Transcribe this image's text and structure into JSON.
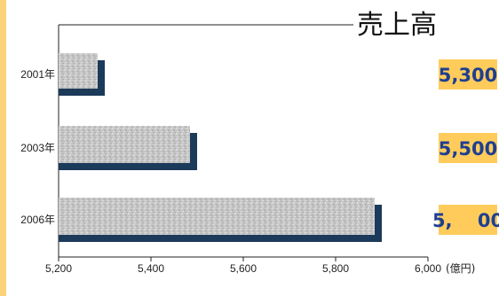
{
  "chart_data": {
    "type": "bar",
    "orientation": "horizontal",
    "title": "売上高",
    "categories": [
      "2001年",
      "2003年",
      "2006年"
    ],
    "values": [
      5300,
      5500,
      5900
    ],
    "value_labels": [
      "5,300",
      "5,500",
      "5,　 00"
    ],
    "xlim": [
      5200,
      6000
    ],
    "xticks": [
      "5,200",
      "5,400",
      "5,600",
      "5,800",
      "6,000"
    ],
    "unit": "(億円)",
    "grid": false,
    "legend": "none"
  },
  "colors": {
    "left_stripe": "#fbd27a",
    "bar_shadow": "#1c3a5a",
    "bar_fill": "#c4c4c4",
    "value_box": "#ffcc5c",
    "value_text": "#1f3f8f"
  }
}
